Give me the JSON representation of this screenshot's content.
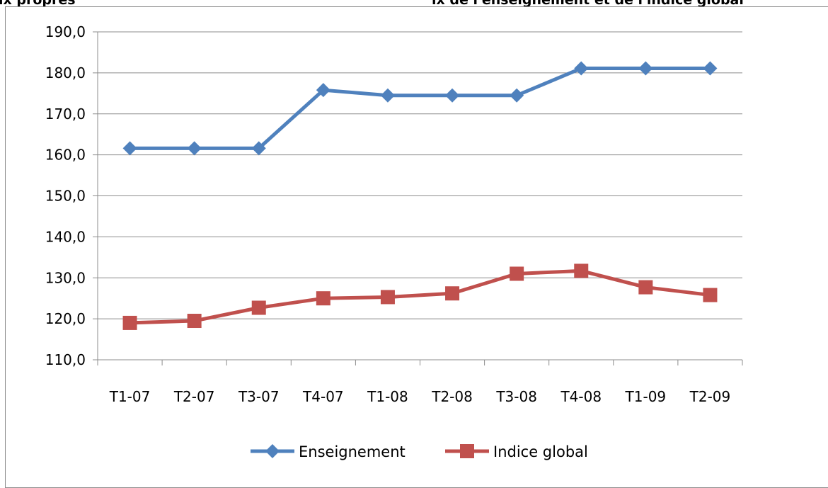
{
  "header": {
    "fragment_left": "ix propres",
    "fragment_right": "ix de l'enseignement et de l'indice global"
  },
  "colors": {
    "series_1": "#4f81bd",
    "series_2": "#c0504d",
    "grid": "#8c8c8c",
    "frame": "#8c8c8c"
  },
  "chart_data": {
    "type": "line",
    "categories": [
      "T1-07",
      "T2-07",
      "T3-07",
      "T4-07",
      "T1-08",
      "T2-08",
      "T3-08",
      "T4-08",
      "T1-09",
      "T2-09"
    ],
    "series": [
      {
        "name": "Enseignement",
        "values": [
          161.6,
          161.6,
          161.6,
          175.8,
          174.5,
          174.5,
          174.5,
          181.1,
          181.1,
          181.1
        ],
        "marker": "diamond"
      },
      {
        "name": "Indice global",
        "values": [
          119.0,
          119.5,
          122.7,
          125.0,
          125.3,
          126.2,
          131.0,
          131.7,
          127.7,
          125.8
        ],
        "marker": "square"
      }
    ],
    "yticks": [
      "110,0",
      "120,0",
      "130,0",
      "140,0",
      "150,0",
      "160,0",
      "170,0",
      "180,0",
      "190,0"
    ],
    "ylim": [
      110,
      190
    ],
    "grid": true,
    "legend": "bottom"
  }
}
